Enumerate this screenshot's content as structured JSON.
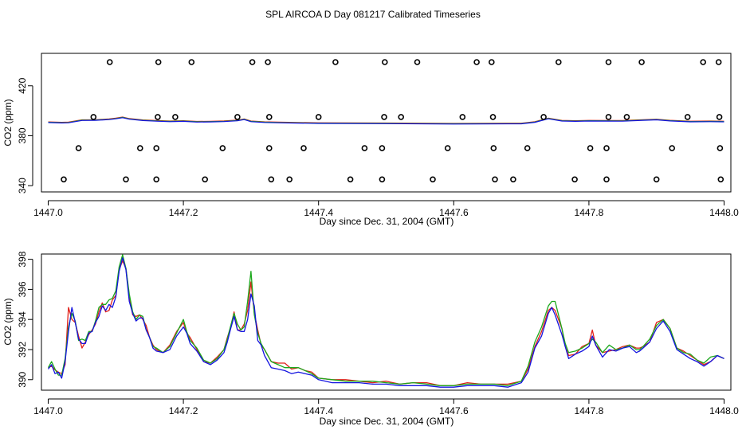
{
  "figure": {
    "title": "SPL AIRCOA D  Day 081217  Calibrated Timeseries"
  },
  "chart_data": [
    {
      "type": "scatter",
      "xlabel": "Day since Dec. 31, 2004 (GMT)",
      "ylabel": "CO2 (ppm)",
      "xlim": [
        1446.99,
        1448.01
      ],
      "ylim": [
        335,
        446
      ],
      "xticks": [
        1447.0,
        1447.2,
        1447.4,
        1447.6,
        1447.8,
        1448.0
      ],
      "xtick_labels": [
        "1447.0",
        "1447.2",
        "1447.4",
        "1447.6",
        "1447.8",
        "1448.0"
      ],
      "yticks": [
        340,
        380,
        420
      ],
      "ytick_labels": [
        "340",
        "380",
        "420"
      ],
      "colors": {
        "red": "#e0201a",
        "green": "#1ca81c",
        "blue": "#1414e0",
        "points": "#000000"
      },
      "points_x": [
        1447.023,
        1447.115,
        1447.16,
        1447.232,
        1447.33,
        1447.357,
        1447.447,
        1447.494,
        1447.569,
        1447.661,
        1447.688,
        1447.779,
        1447.826,
        1447.9,
        1447.995,
        1447.045,
        1447.136,
        1447.16,
        1447.258,
        1447.327,
        1447.378,
        1447.468,
        1447.494,
        1447.591,
        1447.659,
        1447.709,
        1447.802,
        1447.826,
        1447.923,
        1447.994,
        1447.067,
        1447.162,
        1447.188,
        1447.28,
        1447.327,
        1447.4,
        1447.497,
        1447.522,
        1447.613,
        1447.658,
        1447.733,
        1447.829,
        1447.856,
        1447.946,
        1447.993,
        1447.091,
        1447.163,
        1447.212,
        1447.302,
        1447.325,
        1447.425,
        1447.498,
        1447.546,
        1447.634,
        1447.656,
        1447.755,
        1447.829,
        1447.878,
        1447.969,
        1447.992
      ],
      "points_y": [
        345,
        345,
        345,
        345,
        345,
        345,
        345,
        345,
        345,
        345,
        345,
        345,
        345,
        345,
        345,
        370,
        370,
        370,
        370,
        370,
        370,
        370,
        370,
        370,
        370,
        370,
        370,
        370,
        370,
        370,
        395,
        395,
        395,
        395,
        395,
        395,
        395,
        395,
        395,
        395,
        395,
        395,
        395,
        395,
        395,
        439,
        439,
        439,
        439,
        439,
        439,
        439,
        439,
        439,
        439,
        439,
        439,
        439,
        439,
        439
      ],
      "line_x": [
        1447.0,
        1447.02,
        1447.03,
        1447.05,
        1447.07,
        1447.09,
        1447.1,
        1447.11,
        1447.12,
        1447.14,
        1447.16,
        1447.18,
        1447.2,
        1447.22,
        1447.24,
        1447.26,
        1447.28,
        1447.29,
        1447.3,
        1447.32,
        1447.34,
        1447.4,
        1447.5,
        1447.6,
        1447.7,
        1447.72,
        1447.74,
        1447.76,
        1447.78,
        1447.8,
        1447.85,
        1447.88,
        1447.9,
        1447.92,
        1447.95,
        1447.98,
        1448.0
      ],
      "line_y": [
        390.8,
        390.5,
        390.6,
        392.5,
        392.6,
        393.2,
        393.8,
        394.7,
        393.5,
        392.4,
        391.9,
        391.5,
        391.8,
        391.2,
        391.3,
        391.6,
        392.2,
        393.2,
        391.5,
        390.9,
        390.6,
        390.1,
        389.9,
        389.6,
        389.8,
        391.0,
        393.8,
        392.0,
        391.8,
        392.0,
        391.9,
        392.6,
        393.0,
        392.1,
        391.4,
        391.5,
        391.4
      ]
    },
    {
      "type": "line",
      "xlabel": "Day since Dec. 31, 2004 (GMT)",
      "ylabel": "CO2 (ppm)",
      "xlim": [
        1446.99,
        1448.01
      ],
      "ylim": [
        389.3,
        398.35
      ],
      "xticks": [
        1447.0,
        1447.2,
        1447.4,
        1447.6,
        1447.8,
        1448.0
      ],
      "xtick_labels": [
        "1447.0",
        "1447.2",
        "1447.4",
        "1447.6",
        "1447.8",
        "1448.0"
      ],
      "yticks": [
        390,
        392,
        394,
        396,
        398
      ],
      "ytick_labels": [
        "390",
        "392",
        "394",
        "396",
        "398"
      ],
      "x": [
        1447.0,
        1447.005,
        1447.01,
        1447.015,
        1447.02,
        1447.025,
        1447.03,
        1447.035,
        1447.04,
        1447.045,
        1447.05,
        1447.055,
        1447.06,
        1447.065,
        1447.07,
        1447.075,
        1447.08,
        1447.085,
        1447.09,
        1447.095,
        1447.1,
        1447.105,
        1447.11,
        1447.115,
        1447.12,
        1447.125,
        1447.13,
        1447.135,
        1447.14,
        1447.145,
        1447.15,
        1447.155,
        1447.16,
        1447.17,
        1447.18,
        1447.19,
        1447.2,
        1447.205,
        1447.21,
        1447.22,
        1447.23,
        1447.24,
        1447.25,
        1447.26,
        1447.265,
        1447.27,
        1447.275,
        1447.28,
        1447.285,
        1447.29,
        1447.295,
        1447.3,
        1447.305,
        1447.31,
        1447.315,
        1447.32,
        1447.33,
        1447.34,
        1447.35,
        1447.36,
        1447.37,
        1447.38,
        1447.39,
        1447.4,
        1447.42,
        1447.44,
        1447.46,
        1447.48,
        1447.5,
        1447.52,
        1447.54,
        1447.56,
        1447.58,
        1447.6,
        1447.62,
        1447.64,
        1447.66,
        1447.68,
        1447.7,
        1447.71,
        1447.72,
        1447.73,
        1447.74,
        1447.745,
        1447.75,
        1447.76,
        1447.765,
        1447.77,
        1447.78,
        1447.79,
        1447.8,
        1447.805,
        1447.81,
        1447.82,
        1447.83,
        1447.84,
        1447.85,
        1447.86,
        1447.87,
        1447.875,
        1447.88,
        1447.89,
        1447.9,
        1447.91,
        1447.92,
        1447.93,
        1447.94,
        1447.95,
        1447.96,
        1447.97,
        1447.98,
        1447.99,
        1448.0
      ],
      "base": [
        390.8,
        391.0,
        390.6,
        390.5,
        390.3,
        391.2,
        393.8,
        394.3,
        393.6,
        392.8,
        392.4,
        392.6,
        393.0,
        393.2,
        393.8,
        394.5,
        394.9,
        394.6,
        394.9,
        395.1,
        395.6,
        397.2,
        397.9,
        397.4,
        395.5,
        394.4,
        394.0,
        394.3,
        394.1,
        393.4,
        392.8,
        392.2,
        392.0,
        391.8,
        392.2,
        392.9,
        393.8,
        393.2,
        392.6,
        392.0,
        391.3,
        391.1,
        391.3,
        392.0,
        392.7,
        393.5,
        394.4,
        393.6,
        393.3,
        393.5,
        394.6,
        396.5,
        394.3,
        393.1,
        392.3,
        392.0,
        391.2,
        391.0,
        390.9,
        390.7,
        390.8,
        390.6,
        390.4,
        390.1,
        390.0,
        389.9,
        389.9,
        389.8,
        389.8,
        389.7,
        389.8,
        389.7,
        389.6,
        389.6,
        389.7,
        389.7,
        389.7,
        389.6,
        389.9,
        390.7,
        392.2,
        393.1,
        394.5,
        394.9,
        394.6,
        393.2,
        392.2,
        391.6,
        391.8,
        392.1,
        392.4,
        392.9,
        392.5,
        391.8,
        392.2,
        392.0,
        392.1,
        392.3,
        391.9,
        392.0,
        392.2,
        392.6,
        393.6,
        394.0,
        393.4,
        392.1,
        391.8,
        391.6,
        391.3,
        391.0,
        391.3,
        391.6,
        391.4
      ],
      "series": [
        {
          "name": "red",
          "color": "#e0201a",
          "offset": [
            0.0,
            -0.1,
            0.05,
            0.0,
            0.1,
            -0.2,
            1.0,
            -0.3,
            0.2,
            0.1,
            -0.3,
            -0.1,
            0.0,
            0.1,
            -0.1,
            0.0,
            0.2,
            -0.1,
            -0.3,
            0.2,
            0.0,
            0.1,
            0.0,
            0.0,
            0.0,
            -0.1,
            0.2,
            0.0,
            -0.1,
            0.2,
            0.0,
            0.1,
            0.0,
            0.0,
            0.1,
            0.3,
            0.0,
            -0.1,
            0.2,
            0.0,
            -0.1,
            0.0,
            0.2,
            0.0,
            0.1,
            0.0,
            0.1,
            -0.3,
            0.0,
            0.2,
            0.0,
            0.0,
            0.1,
            0.2,
            0.0,
            0.0,
            0.0,
            0.1,
            0.2,
            0.0,
            0.0,
            0.0,
            0.1,
            0.0,
            0.0,
            0.1,
            0.0,
            0.0,
            0.1,
            0.0,
            0.0,
            0.1,
            0.0,
            0.0,
            0.1,
            0.0,
            0.0,
            0.1,
            0.0,
            0.0,
            0.0,
            0.1,
            0.1,
            -0.1,
            0.0,
            0.2,
            0.0,
            0.0,
            -0.1,
            0.1,
            0.0,
            0.4,
            -0.2,
            0.0,
            -0.3,
            0.0,
            0.1,
            0.0,
            0.2,
            0.1,
            0.0,
            -0.1,
            0.2,
            0.0,
            0.0,
            0.0,
            0.1,
            0.0,
            0.0,
            0.0,
            -0.1,
            0.0,
            0.0
          ]
        },
        {
          "name": "green",
          "color": "#1ca81c",
          "offset": [
            0.0,
            0.2,
            0.1,
            -0.2,
            0.0,
            0.2,
            -0.3,
            0.1,
            0.3,
            -0.2,
            0.3,
            0.0,
            0.2,
            0.0,
            0.1,
            0.3,
            0.1,
            0.4,
            0.4,
            0.3,
            0.3,
            0.3,
            0.4,
            0.0,
            0.2,
            0.1,
            0.0,
            0.0,
            0.1,
            -0.1,
            0.0,
            0.0,
            0.1,
            0.0,
            0.0,
            0.2,
            0.2,
            0.0,
            0.0,
            0.1,
            0.0,
            0.0,
            0.1,
            0.0,
            0.0,
            0.1,
            0.0,
            0.1,
            0.0,
            0.0,
            0.6,
            0.7,
            0.0,
            0.0,
            0.1,
            0.0,
            0.0,
            0.0,
            -0.1,
            0.1,
            0.0,
            0.0,
            0.0,
            0.0,
            0.0,
            0.0,
            0.0,
            0.1,
            0.0,
            0.0,
            0.0,
            0.0,
            0.0,
            0.0,
            0.0,
            0.0,
            0.0,
            0.0,
            0.0,
            0.2,
            0.3,
            0.4,
            0.4,
            0.3,
            0.6,
            0.2,
            0.2,
            0.2,
            0.1,
            0.0,
            0.0,
            -0.2,
            0.0,
            0.0,
            0.1,
            0.0,
            0.0,
            0.0,
            0.1,
            0.0,
            0.0,
            0.1,
            0.0,
            0.0,
            0.0,
            0.0,
            0.0,
            0.1,
            0.0,
            0.1,
            0.2,
            0.0,
            0.0
          ]
        },
        {
          "name": "blue",
          "color": "#1414e0",
          "offset": [
            -0.1,
            0.0,
            -0.2,
            0.0,
            -0.2,
            0.0,
            -0.6,
            0.5,
            0.2,
            -0.1,
            0.0,
            -0.2,
            0.1,
            0.0,
            0.0,
            -0.3,
            0.0,
            0.0,
            0.1,
            -0.3,
            -0.1,
            0.0,
            0.2,
            -0.1,
            -0.3,
            0.0,
            -0.1,
            -0.2,
            0.0,
            -0.1,
            0.0,
            -0.1,
            -0.1,
            0.0,
            -0.2,
            0.0,
            -0.3,
            -0.1,
            -0.2,
            -0.1,
            -0.1,
            -0.1,
            0.0,
            -0.2,
            -0.2,
            -0.1,
            -0.2,
            -0.3,
            -0.1,
            -0.3,
            -0.6,
            -0.8,
            0.6,
            -0.5,
            0.0,
            -0.4,
            -0.4,
            -0.3,
            -0.3,
            -0.3,
            -0.3,
            -0.2,
            -0.1,
            -0.1,
            -0.2,
            -0.1,
            -0.1,
            -0.1,
            -0.1,
            -0.1,
            -0.2,
            -0.1,
            -0.1,
            -0.1,
            -0.1,
            -0.1,
            -0.1,
            -0.1,
            -0.1,
            -0.2,
            -0.1,
            -0.2,
            -0.1,
            -0.1,
            -0.3,
            -0.2,
            0.0,
            -0.2,
            -0.1,
            -0.2,
            -0.2,
            0.0,
            -0.2,
            -0.3,
            -0.2,
            -0.1,
            0.0,
            -0.1,
            -0.1,
            -0.1,
            -0.1,
            -0.1,
            -0.2,
            -0.1,
            -0.2,
            -0.1,
            -0.1,
            -0.2,
            -0.1,
            -0.1,
            -0.1,
            0.0,
            0.0
          ]
        }
      ]
    }
  ]
}
